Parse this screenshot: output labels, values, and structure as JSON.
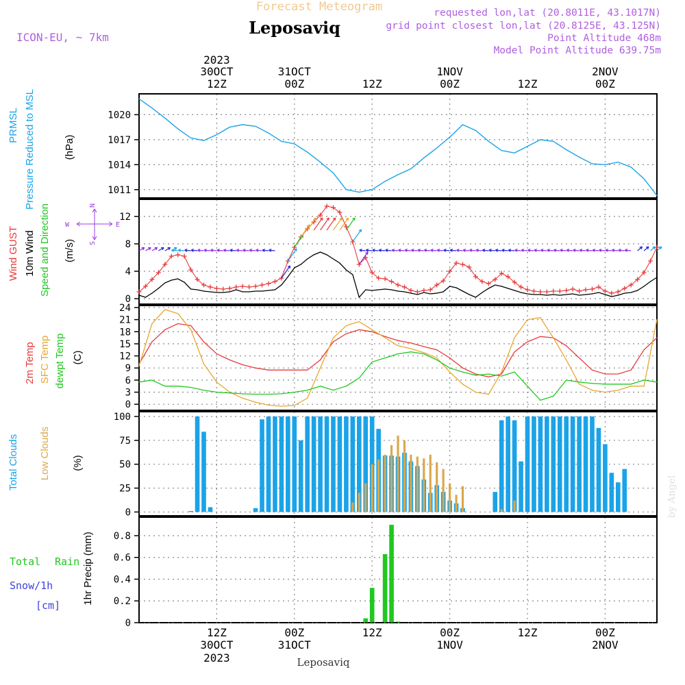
{
  "header": {
    "title": "Forecast Meteogram",
    "location": "Leposaviq",
    "model": "ICON-EU, ~ 7km",
    "requested": "requested lon,lat (20.8011E, 43.1017N)",
    "grid": "grid point closest lon,lat (20.8125E, 43.125N)",
    "point_alt": "Point Altitude 468m",
    "model_alt": "Model Point Altitude 639.75m",
    "credit": "by Angel",
    "footer": "Leposaviq"
  },
  "time_axis": {
    "top_labels": [
      {
        "year": "2023",
        "day": "30OCT",
        "hour": "12Z"
      },
      {
        "year": "",
        "day": "31OCT",
        "hour": "00Z"
      },
      {
        "year": "",
        "day": "",
        "hour": "12Z"
      },
      {
        "year": "",
        "day": "1NOV",
        "hour": "00Z"
      },
      {
        "year": "",
        "day": "",
        "hour": "12Z"
      },
      {
        "year": "",
        "day": "2NOV",
        "hour": "00Z"
      }
    ],
    "bottom_labels": [
      {
        "hour": "12Z",
        "day": "30OCT",
        "year": "2023"
      },
      {
        "hour": "00Z",
        "day": "31OCT",
        "year": ""
      },
      {
        "hour": "12Z",
        "day": "",
        "year": ""
      },
      {
        "hour": "00Z",
        "day": "1NOV",
        "year": ""
      },
      {
        "hour": "12Z",
        "day": "",
        "year": ""
      },
      {
        "hour": "00Z",
        "day": "2NOV",
        "year": ""
      }
    ],
    "tick_hours": [
      12,
      24,
      36,
      48,
      60,
      72
    ]
  },
  "chart_data": [
    {
      "type": "line",
      "panel": "pressure",
      "labels": [
        "PRMSL",
        "Pressure Reduced to MSL",
        "(hPa)"
      ],
      "colors": {
        "line": "#1aa3e8"
      },
      "yticks": [
        "1011",
        "1014",
        "1017",
        "1020"
      ],
      "ylim": [
        1010,
        1022.5
      ],
      "x": [
        0,
        2,
        4,
        6,
        8,
        10,
        12,
        14,
        16,
        18,
        20,
        22,
        24,
        26,
        28,
        30,
        32,
        34,
        36,
        38,
        40,
        42,
        44,
        46,
        48,
        50,
        52,
        54,
        56,
        58,
        60,
        62,
        64,
        66,
        68,
        70,
        72,
        74,
        76,
        78,
        80
      ],
      "values": [
        1021.9,
        1020.8,
        1019.6,
        1018.3,
        1017.2,
        1016.9,
        1017.6,
        1018.5,
        1018.8,
        1018.6,
        1017.8,
        1016.8,
        1016.5,
        1015.5,
        1014.3,
        1013.0,
        1011.0,
        1010.7,
        1011.0,
        1012.0,
        1012.8,
        1013.5,
        1014.8,
        1016.0,
        1017.3,
        1018.8,
        1018.1,
        1016.8,
        1015.7,
        1015.4,
        1016.2,
        1017.0,
        1016.8,
        1015.8,
        1014.9,
        1014.1,
        1014.0,
        1014.3,
        1013.7,
        1012.3,
        1010.3
      ]
    },
    {
      "type": "line",
      "panel": "wind",
      "labels": [
        "Wind GUST",
        "10m Wind",
        "Speed and Direction",
        "(m/s)"
      ],
      "compass": {
        "n": "N",
        "s": "S",
        "w": "W",
        "e": "E"
      },
      "colors": {
        "gust": "#e63a3a",
        "wind": "#000000",
        "compass": "#9a3ce0"
      },
      "yticks": [
        "0",
        "4",
        "8",
        "12"
      ],
      "ylim": [
        -0.8,
        14.5
      ],
      "x": [
        0,
        1,
        2,
        3,
        4,
        5,
        6,
        7,
        8,
        9,
        10,
        11,
        12,
        13,
        14,
        15,
        16,
        17,
        18,
        19,
        20,
        21,
        22,
        23,
        24,
        25,
        26,
        27,
        28,
        29,
        30,
        31,
        32,
        33,
        34,
        35,
        36,
        37,
        38,
        39,
        40,
        41,
        42,
        43,
        44,
        45,
        46,
        47,
        48,
        49,
        50,
        51,
        52,
        53,
        54,
        55,
        56,
        57,
        58,
        59,
        60,
        61,
        62,
        63,
        64,
        65,
        66,
        67,
        68,
        69,
        70,
        71,
        72,
        73,
        74,
        75,
        76,
        77,
        78,
        79,
        80
      ],
      "series": [
        {
          "name": "Wind GUST",
          "values": [
            1.0,
            1.8,
            2.8,
            3.8,
            5.0,
            6.2,
            6.4,
            6.2,
            4.2,
            2.8,
            2.0,
            1.7,
            1.5,
            1.4,
            1.5,
            1.7,
            1.8,
            1.7,
            1.8,
            2.0,
            2.2,
            2.5,
            3.0,
            5.5,
            7.5,
            9.0,
            10.2,
            11.2,
            12.2,
            13.5,
            13.3,
            12.6,
            10.5,
            8.3,
            5.0,
            6.0,
            3.8,
            3.0,
            2.9,
            2.5,
            2.0,
            1.7,
            1.2,
            1.0,
            1.2,
            1.3,
            2.0,
            2.6,
            4.0,
            5.2,
            5.0,
            4.6,
            3.2,
            2.5,
            2.2,
            2.8,
            3.7,
            3.2,
            2.4,
            1.7,
            1.3,
            1.1,
            1.0,
            1.0,
            1.1,
            1.1,
            1.2,
            1.4,
            1.1,
            1.3,
            1.4,
            1.7,
            1.1,
            0.8,
            1.0,
            1.5,
            2.0,
            2.8,
            3.8,
            5.5,
            7.5
          ]
        },
        {
          "name": "10m Wind",
          "values": [
            0.5,
            0.2,
            0.8,
            1.5,
            2.3,
            2.7,
            2.9,
            2.4,
            1.4,
            1.3,
            1.1,
            1.0,
            0.9,
            0.9,
            1.0,
            1.3,
            1.0,
            1.0,
            1.1,
            1.1,
            1.2,
            1.3,
            2.0,
            3.2,
            4.5,
            5.0,
            5.8,
            6.4,
            6.8,
            6.4,
            5.8,
            5.2,
            4.2,
            3.5,
            0.2,
            1.3,
            1.2,
            1.3,
            1.4,
            1.3,
            1.1,
            1.0,
            0.8,
            0.6,
            0.9,
            0.7,
            0.8,
            1.0,
            1.8,
            1.6,
            1.1,
            0.6,
            0.2,
            0.9,
            1.5,
            2.0,
            1.8,
            1.5,
            1.2,
            0.9,
            0.7,
            0.6,
            0.6,
            0.5,
            0.6,
            0.5,
            0.6,
            0.7,
            0.5,
            0.6,
            0.7,
            0.9,
            0.6,
            0.3,
            0.5,
            0.8,
            0.9,
            1.2,
            1.8,
            2.5,
            3.1
          ]
        }
      ]
    },
    {
      "type": "line",
      "panel": "temperature",
      "labels": [
        "2m Temp",
        "SFC Temp",
        "dewpt Temp",
        "(C)"
      ],
      "colors": {
        "t2m": "#e63a3a",
        "sfc": "#e8a630",
        "dew": "#20c820"
      },
      "yticks": [
        "0",
        "3",
        "6",
        "9",
        "12",
        "15",
        "18",
        "21",
        "24"
      ],
      "ylim": [
        -1.5,
        24.5
      ],
      "x": [
        0,
        2,
        4,
        6,
        8,
        10,
        12,
        14,
        16,
        18,
        20,
        22,
        24,
        26,
        28,
        30,
        32,
        34,
        36,
        38,
        40,
        42,
        44,
        46,
        48,
        50,
        52,
        54,
        56,
        58,
        60,
        62,
        64,
        66,
        68,
        70,
        72,
        74,
        76,
        78,
        80
      ],
      "series": [
        {
          "name": "2m Temp",
          "values": [
            10.0,
            15.5,
            18.5,
            20.0,
            19.5,
            15.5,
            12.5,
            11.0,
            9.8,
            9.0,
            8.5,
            8.5,
            8.5,
            8.5,
            11.0,
            15.5,
            17.5,
            18.5,
            18.0,
            16.8,
            15.8,
            15.2,
            14.3,
            13.5,
            11.5,
            9.0,
            7.5,
            6.8,
            7.5,
            13.0,
            15.5,
            16.8,
            16.5,
            14.5,
            11.5,
            8.5,
            7.5,
            7.5,
            8.5,
            13.5,
            16.5
          ]
        },
        {
          "name": "SFC Temp",
          "values": [
            9.5,
            20.0,
            23.5,
            22.5,
            18.5,
            10.0,
            5.5,
            3.0,
            1.5,
            0.5,
            -0.2,
            -0.5,
            -0.3,
            1.5,
            9.0,
            16.5,
            19.5,
            20.5,
            18.5,
            16.5,
            14.5,
            13.8,
            12.8,
            11.5,
            8.0,
            5.0,
            3.0,
            2.5,
            8.0,
            16.5,
            21.0,
            21.5,
            16.5,
            11.0,
            5.0,
            3.5,
            3.0,
            3.5,
            4.5,
            4.5,
            21.0
          ]
        },
        {
          "name": "dewpt Temp",
          "values": [
            5.5,
            6.0,
            4.5,
            4.5,
            4.2,
            3.5,
            3.0,
            2.8,
            2.6,
            2.5,
            2.5,
            2.6,
            3.0,
            3.5,
            4.5,
            3.5,
            4.5,
            6.5,
            10.5,
            11.5,
            12.5,
            13.0,
            12.5,
            11.0,
            9.0,
            8.0,
            7.2,
            7.5,
            7.0,
            8.0,
            4.5,
            1.0,
            2.0,
            6.0,
            5.5,
            5.2,
            5.0,
            5.0,
            5.0,
            6.0,
            5.5
          ]
        }
      ]
    },
    {
      "type": "bar",
      "panel": "clouds",
      "labels": [
        "Total Clouds",
        "Low Clouds",
        "(%)"
      ],
      "colors": {
        "total": "#1aa3e8",
        "low": "#d9a84e"
      },
      "yticks": [
        "0",
        "25",
        "50",
        "75",
        "100"
      ],
      "ylim": [
        -4,
        105
      ],
      "x": [
        0,
        1,
        2,
        3,
        4,
        5,
        6,
        7,
        8,
        9,
        10,
        11,
        12,
        13,
        14,
        15,
        16,
        17,
        18,
        19,
        20,
        21,
        22,
        23,
        24,
        25,
        26,
        27,
        28,
        29,
        30,
        31,
        32,
        33,
        34,
        35,
        36,
        37,
        38,
        39,
        40,
        41,
        42,
        43,
        44,
        45,
        46,
        47,
        48,
        49,
        50,
        51,
        52,
        53,
        54,
        55,
        56,
        57,
        58,
        59,
        60,
        61,
        62,
        63,
        64,
        65,
        66,
        67,
        68,
        69,
        70,
        71,
        72,
        73,
        74,
        75,
        76,
        77,
        78,
        79,
        80
      ],
      "series": [
        {
          "name": "Total Clouds",
          "values": [
            0,
            0,
            0,
            0,
            0,
            0,
            0,
            0,
            1,
            100,
            84,
            5,
            0,
            0,
            0,
            0,
            0,
            0,
            4,
            97,
            100,
            100,
            100,
            100,
            100,
            75,
            100,
            100,
            100,
            100,
            100,
            100,
            100,
            100,
            100,
            100,
            100,
            87,
            59,
            59,
            58,
            62,
            53,
            48,
            34,
            20,
            28,
            21,
            12,
            9,
            4,
            0,
            0,
            0,
            0,
            21,
            96,
            100,
            96,
            53,
            100,
            100,
            100,
            100,
            100,
            100,
            100,
            100,
            100,
            100,
            100,
            88,
            71,
            41,
            31,
            45,
            0,
            0,
            0,
            0,
            0
          ]
        },
        {
          "name": "Low Clouds",
          "values": [
            0,
            0,
            0,
            0,
            0,
            0,
            0,
            0,
            0,
            0,
            0,
            0,
            0,
            0,
            0,
            0,
            0,
            0,
            0,
            0,
            0,
            0,
            0,
            0,
            0,
            0,
            0,
            0,
            0,
            0,
            0,
            0,
            0,
            10,
            20,
            30,
            50,
            55,
            60,
            70,
            80,
            75,
            60,
            58,
            56,
            60,
            52,
            45,
            30,
            18,
            27,
            0,
            0,
            0,
            0,
            0,
            3,
            0,
            12,
            0,
            0,
            0,
            0,
            0,
            0,
            0,
            0,
            0,
            0,
            0,
            0,
            0,
            0,
            0,
            0,
            0,
            0,
            0,
            0,
            0,
            0
          ]
        }
      ]
    },
    {
      "type": "bar",
      "panel": "precip",
      "labels": [
        "Total",
        "Rain",
        "Snow/1h",
        "[cm]",
        "1hr Precip (mm)"
      ],
      "colors": {
        "rain": "#20c820",
        "snow": "#4040e0",
        "total": "#20c820"
      },
      "yticks": [
        "0",
        "0.2",
        "0.4",
        "0.6",
        "0.8"
      ],
      "ylim": [
        0,
        0.97
      ],
      "x": [
        35,
        36,
        38,
        39,
        40
      ],
      "values": [
        0.04,
        0.32,
        0.63,
        0.9,
        0.01
      ]
    }
  ]
}
